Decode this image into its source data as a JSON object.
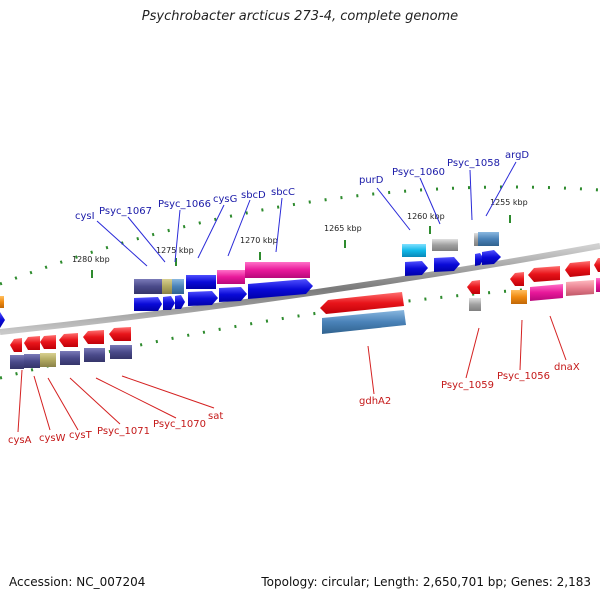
{
  "title": "Psychrobacter arcticus 273-4, complete genome",
  "footer": {
    "accession": "Accession: NC_007204",
    "summary": "Topology: circular; Length: 2,650,701 bp; Genes: 2,183"
  },
  "scale_labels": [
    "1280 kbp",
    "1275 kbp",
    "1270 kbp",
    "1265 kbp",
    "1260 kbp",
    "1255 kbp"
  ],
  "forward_gene_labels": [
    "cysI",
    "Psyc_1067",
    "Psyc_1066",
    "cysG",
    "sbcD",
    "sbcC",
    "purD",
    "Psyc_1060",
    "Psyc_1058",
    "argD"
  ],
  "reverse_gene_labels": [
    "cysA",
    "cysW",
    "cysT",
    "Psyc_1071",
    "Psyc_1070",
    "sat",
    "gdhA2",
    "Psyc_1059",
    "Psyc_1056",
    "dnaX"
  ],
  "colors": {
    "backbone": "#7a7a7a",
    "ticks": "#2e8b2e",
    "forward_cds": "#0a0ad8",
    "reverse_cds": "#e8141a",
    "fwd_label_text": "#1a1aa8",
    "rev_label_text": "#c41818",
    "leader_fwd": "#2a2ad8",
    "leader_rev": "#d42020",
    "cog_slate": "#4a4a8a",
    "cog_olive": "#b0a860",
    "cog_steel": "#4a82b8",
    "cog_magenta": "#e8189a",
    "cog_cyan": "#10b8e8",
    "cog_grey": "#a0a0a0",
    "cog_orange": "#f08a10",
    "cog_pink": "#e88090"
  }
}
